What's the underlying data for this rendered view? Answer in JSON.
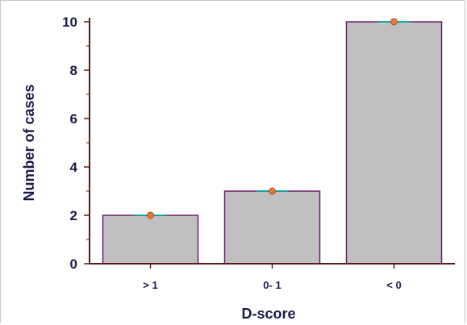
{
  "chart_data": {
    "type": "bar",
    "categories": [
      "> 1",
      "0- 1",
      "< 0"
    ],
    "values": [
      2,
      3,
      10
    ],
    "title": "",
    "xlabel": "D-score",
    "ylabel": "Number of cases",
    "ylim": [
      0,
      10
    ],
    "yticks": [
      "0",
      "2",
      "4",
      "6",
      "8",
      "10"
    ],
    "grid": false,
    "legend": "none",
    "colors": {
      "bar_fill": "#c0c0c0",
      "bar_stroke": "#6a1f6a",
      "axis": "#5a1a1a",
      "marker": "#e07a3a",
      "marker_line": "#1aa0a0",
      "text": "#1a1a4a"
    }
  }
}
